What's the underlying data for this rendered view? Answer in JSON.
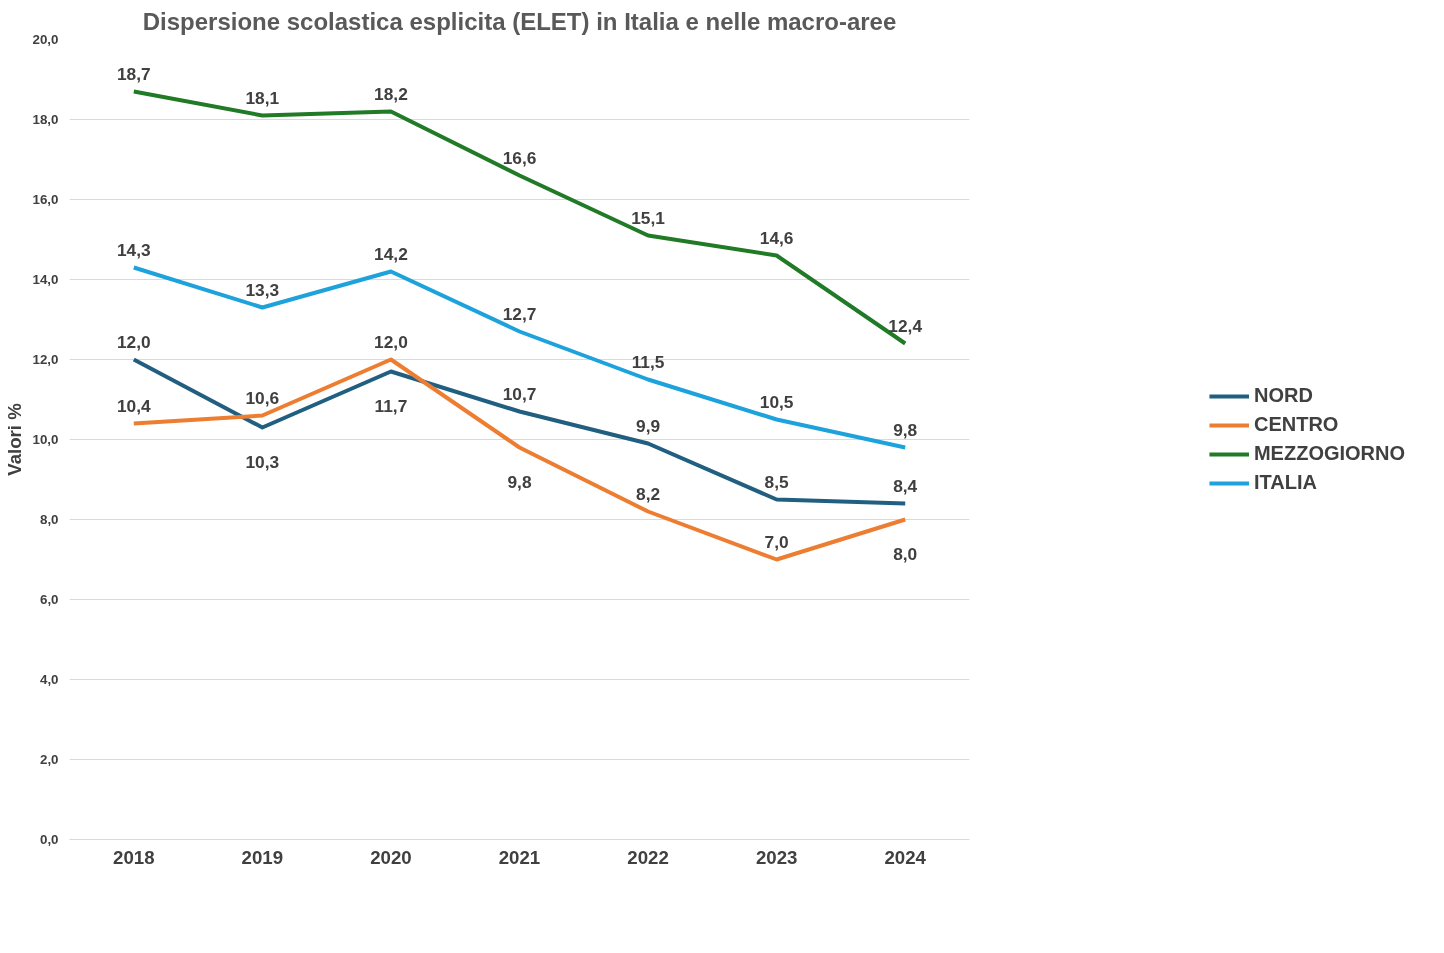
{
  "chart_data": {
    "type": "line",
    "title": "Dispersione scolastica esplicita (ELET) in Italia e nelle macro-aree",
    "ylabel": "Valori %",
    "categories": [
      "2018",
      "2019",
      "2020",
      "2021",
      "2022",
      "2023",
      "2024"
    ],
    "ylim": [
      0,
      20
    ],
    "yticks": [
      {
        "value": 0,
        "label": "0,0"
      },
      {
        "value": 2,
        "label": "2,0"
      },
      {
        "value": 4,
        "label": "4,0"
      },
      {
        "value": 6,
        "label": "6,0"
      },
      {
        "value": 8,
        "label": "8,0"
      },
      {
        "value": 10,
        "label": "10,0"
      },
      {
        "value": 12,
        "label": "12,0"
      },
      {
        "value": 14,
        "label": "14,0"
      },
      {
        "value": 16,
        "label": "16,0"
      },
      {
        "value": 18,
        "label": "18,0"
      },
      {
        "value": 20,
        "label": "20,0"
      }
    ],
    "grid": "y",
    "legend": "right",
    "marker": "none",
    "line_style": "solid",
    "series": [
      {
        "name": "NORD",
        "color": "#215f80",
        "values": [
          12.0,
          10.3,
          11.7,
          10.7,
          9.9,
          8.5,
          8.4
        ],
        "value_labels": [
          "12,0",
          "10,3",
          "11,7",
          "10,7",
          "9,9",
          "8,5",
          "8,4"
        ]
      },
      {
        "name": "CENTRO",
        "color": "#ed7d31",
        "values": [
          10.4,
          10.6,
          12.0,
          9.8,
          8.2,
          7.0,
          8.0
        ],
        "value_labels": [
          "10,4",
          "10,6",
          "12,0",
          "9,8",
          "8,2",
          "7,0",
          "8,0"
        ]
      },
      {
        "name": "MEZZOGIORNO",
        "color": "#217a26",
        "values": [
          18.7,
          18.1,
          18.2,
          16.6,
          15.1,
          14.6,
          12.4
        ],
        "value_labels": [
          "18,7",
          "18,1",
          "18,2",
          "16,6",
          "15,1",
          "14,6",
          "12,4"
        ]
      },
      {
        "name": "ITALIA",
        "color": "#1ea2dc",
        "values": [
          14.3,
          13.3,
          14.2,
          12.7,
          11.5,
          10.5,
          9.8
        ],
        "value_labels": [
          "14,3",
          "13,3",
          "14,2",
          "12,7",
          "11,5",
          "10,5",
          "9,8"
        ]
      }
    ]
  }
}
